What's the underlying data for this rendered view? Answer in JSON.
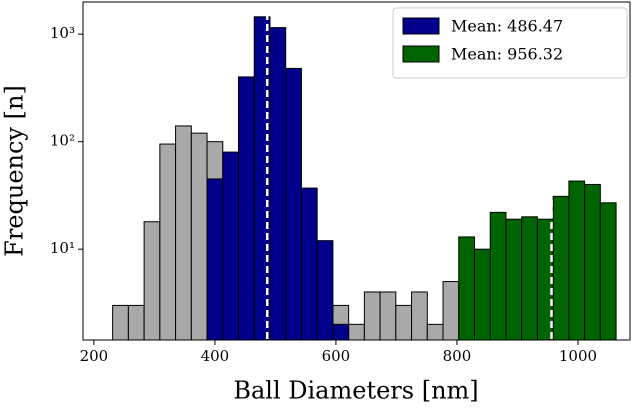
{
  "chart_data": {
    "type": "histogram",
    "xlabel": "Ball Diameters [nm]",
    "ylabel": "Frequency [n]",
    "log_y": true,
    "bins": [
      231,
      257,
      283,
      309,
      335,
      361,
      387,
      413,
      439,
      465,
      491,
      517,
      543,
      569,
      595,
      621,
      647,
      673,
      699,
      725,
      751,
      777,
      803,
      829,
      855,
      881,
      907,
      933,
      959,
      985,
      1011,
      1037,
      1063
    ],
    "series": [
      {
        "color": "#a9a9a9",
        "values": [
          3,
          3,
          18,
          95,
          140,
          120,
          100,
          null,
          null,
          null,
          null,
          null,
          null,
          null,
          3,
          2,
          4,
          4,
          3,
          4,
          2,
          5,
          null,
          null,
          null,
          null,
          null,
          null,
          null,
          null,
          null,
          null
        ]
      },
      {
        "color": "#00008b",
        "values": [
          null,
          null,
          null,
          null,
          null,
          null,
          45,
          80,
          400,
          1450,
          1150,
          480,
          37,
          12,
          2,
          null,
          null,
          null,
          null,
          null,
          null,
          null,
          null,
          null,
          null,
          null,
          null,
          null,
          null,
          null,
          null,
          null
        ]
      },
      {
        "color": "#006400",
        "values": [
          null,
          null,
          null,
          null,
          null,
          null,
          null,
          null,
          null,
          null,
          null,
          null,
          null,
          null,
          null,
          null,
          null,
          null,
          null,
          null,
          null,
          null,
          13,
          10,
          22,
          19,
          20,
          19,
          31,
          43,
          40,
          27
        ]
      }
    ],
    "mean_lines": [
      {
        "value": 486.47,
        "label": "Mean: 486.47",
        "color": "#00008b"
      },
      {
        "value": 956.32,
        "label": "Mean: 956.32",
        "color": "#006400"
      }
    ],
    "xlim": [
      182,
      1086
    ],
    "ylim": [
      1.43,
      1990
    ],
    "xticks": [
      200,
      400,
      600,
      800,
      1000
    ],
    "yticks": [
      {
        "value": 10,
        "label": "10¹"
      },
      {
        "value": 100,
        "label": "10²"
      },
      {
        "value": 1000,
        "label": "10³"
      }
    ],
    "legend": "upper right"
  }
}
